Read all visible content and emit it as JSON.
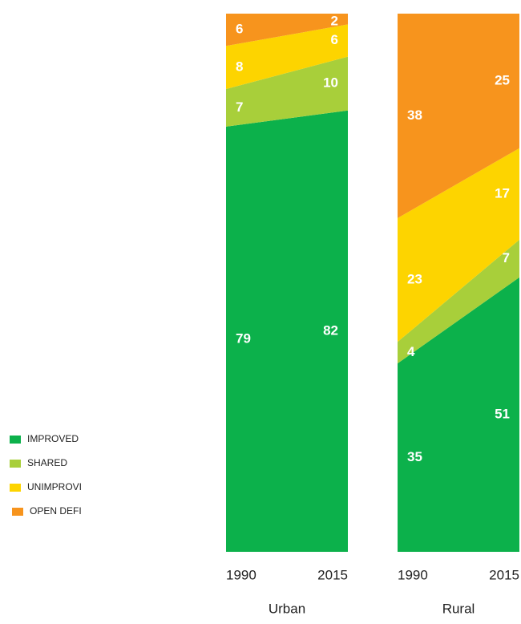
{
  "chart_data": {
    "type": "area",
    "categories": [
      "1990",
      "2015"
    ],
    "legend": [
      {
        "name": "IMPROVED",
        "color": "#0cb14b"
      },
      {
        "name": "SHARED",
        "color": "#a8cf3a"
      },
      {
        "name": "UNIMPROVI",
        "color": "#fdd400"
      },
      {
        "name": "OPEN DEFI",
        "color": "#f7941d"
      }
    ],
    "ylim": [
      0,
      100
    ],
    "panels": [
      {
        "label": "Urban",
        "values": [
          [
            79,
            82
          ],
          [
            7,
            10
          ],
          [
            8,
            6
          ],
          [
            6,
            2
          ]
        ]
      },
      {
        "label": "Rural",
        "values": [
          [
            35,
            51
          ],
          [
            4,
            7
          ],
          [
            23,
            17
          ],
          [
            38,
            25
          ]
        ]
      }
    ]
  }
}
